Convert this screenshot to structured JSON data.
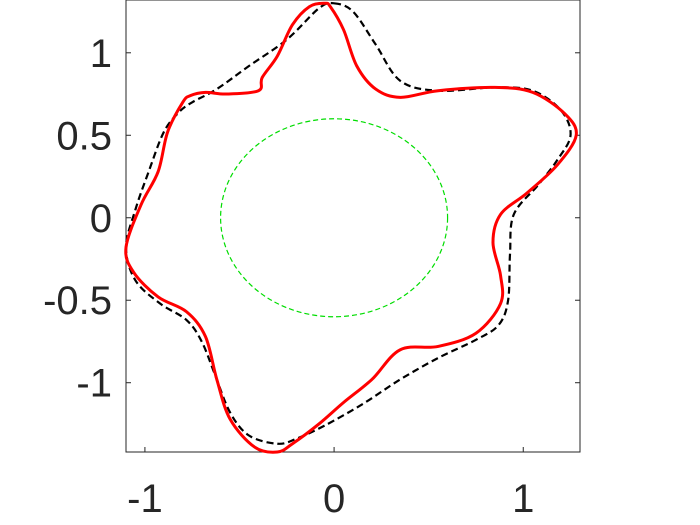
{
  "chart_data": {
    "type": "line",
    "title": "",
    "xlabel": "",
    "ylabel": "",
    "xlim": [
      -1.1,
      1.3
    ],
    "ylim": [
      -1.42,
      1.32
    ],
    "grid": false,
    "legend": "none",
    "x_ticks": [
      {
        "value": -1,
        "label": "-1"
      },
      {
        "value": 0,
        "label": "0"
      },
      {
        "value": 1,
        "label": "1"
      }
    ],
    "y_ticks": [
      {
        "value": 1,
        "label": "1"
      },
      {
        "value": 0.5,
        "label": "0.5"
      },
      {
        "value": 0,
        "label": "0"
      },
      {
        "value": -0.5,
        "label": "-0.5"
      },
      {
        "value": -1,
        "label": "-1"
      }
    ],
    "series": [
      {
        "style": "solid",
        "color": "#ff0000",
        "x": [
          -0.05,
          -0.02,
          0.05,
          0.12,
          0.22,
          0.35,
          0.55,
          0.85,
          1.05,
          1.22,
          1.28,
          1.18,
          1.02,
          0.88,
          0.84,
          0.88,
          0.88,
          0.75,
          0.55,
          0.35,
          0.2,
          0.05,
          -0.08,
          -0.22,
          -0.3,
          -0.42,
          -0.55,
          -0.62,
          -0.68,
          -0.78,
          -0.93,
          -1.06,
          -1.1,
          -1.02,
          -0.93,
          -0.88,
          -0.8,
          -0.76,
          -0.68,
          -0.57,
          -0.4,
          -0.38,
          -0.3,
          -0.22,
          -0.13,
          -0.05
        ],
        "y": [
          1.3,
          1.28,
          1.14,
          0.92,
          0.78,
          0.73,
          0.77,
          0.79,
          0.76,
          0.63,
          0.5,
          0.32,
          0.15,
          0.02,
          -0.15,
          -0.35,
          -0.52,
          -0.7,
          -0.78,
          -0.8,
          -0.98,
          -1.12,
          -1.25,
          -1.37,
          -1.42,
          -1.39,
          -1.22,
          -0.98,
          -0.72,
          -0.57,
          -0.48,
          -0.33,
          -0.18,
          0.08,
          0.28,
          0.52,
          0.7,
          0.74,
          0.76,
          0.75,
          0.77,
          0.85,
          0.98,
          1.17,
          1.28,
          1.3
        ]
      },
      {
        "style": "dashed",
        "color": "#000000",
        "x": [
          0.0,
          0.1,
          0.22,
          0.35,
          0.55,
          0.85,
          1.05,
          1.2,
          1.25,
          1.18,
          1.08,
          0.95,
          0.93,
          0.92,
          0.87,
          0.75,
          0.55,
          0.35,
          0.15,
          -0.05,
          -0.2,
          -0.3,
          -0.45,
          -0.55,
          -0.63,
          -0.7,
          -0.78,
          -0.92,
          -1.05,
          -1.1,
          -1.05,
          -0.98,
          -0.9,
          -0.82,
          -0.75,
          -0.62,
          -0.45,
          -0.25,
          -0.08,
          0.0
        ],
        "y": [
          1.3,
          1.25,
          1.05,
          0.83,
          0.77,
          0.79,
          0.77,
          0.65,
          0.5,
          0.35,
          0.2,
          0.02,
          -0.22,
          -0.5,
          -0.65,
          -0.74,
          -0.85,
          -0.98,
          -1.13,
          -1.26,
          -1.34,
          -1.37,
          -1.32,
          -1.18,
          -0.95,
          -0.75,
          -0.62,
          -0.52,
          -0.38,
          -0.18,
          0.05,
          0.28,
          0.52,
          0.64,
          0.7,
          0.78,
          0.92,
          1.08,
          1.27,
          1.3
        ]
      },
      {
        "style": "dashed",
        "color": "#00dd00",
        "shape": "circle",
        "center": [
          0,
          0
        ],
        "radius": 0.6
      }
    ]
  }
}
